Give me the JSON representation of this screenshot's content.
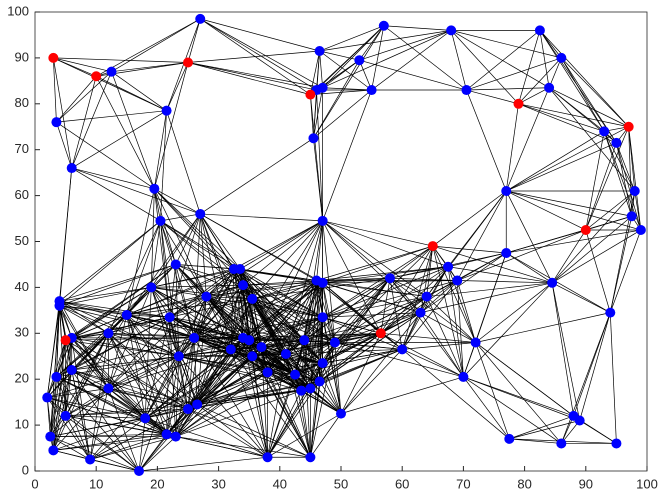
{
  "chart_data": {
    "type": "scatter",
    "xlim": [
      0,
      100
    ],
    "ylim": [
      0,
      100
    ],
    "xticks": [
      0,
      10,
      20,
      30,
      40,
      50,
      60,
      70,
      80,
      90,
      100
    ],
    "yticks": [
      0,
      10,
      20,
      30,
      40,
      50,
      60,
      70,
      80,
      90,
      100
    ],
    "series": [
      {
        "color": "#0000ff",
        "x": [
          27,
          46.5,
          53,
          57,
          68,
          82.5,
          86,
          47,
          46,
          55,
          70.5,
          84,
          12.5,
          21.5,
          3.5,
          6,
          45.5,
          93,
          95,
          98,
          97.5,
          99,
          77,
          19.5,
          20.5,
          27,
          47,
          77,
          84.5,
          94,
          67.5,
          69,
          64,
          63,
          60,
          72,
          70,
          58,
          47,
          46,
          47,
          49,
          47,
          44,
          46.5,
          45,
          43.5,
          42.5,
          41,
          37,
          38,
          35.5,
          34,
          35,
          32,
          35.5,
          34,
          33.5,
          32.5,
          28,
          26,
          23,
          22,
          23.5,
          25,
          26.5,
          19,
          15,
          12,
          12,
          18,
          21.5,
          23,
          38,
          45,
          50,
          17,
          9,
          2.5,
          3,
          2,
          3.5,
          6,
          5,
          6,
          4,
          4,
          77.5,
          86,
          88,
          89,
          95
        ],
        "y": [
          98.5,
          91.5,
          89.5,
          97,
          96,
          96,
          90,
          83.5,
          83,
          83,
          83,
          83.5,
          87,
          78.5,
          76,
          66,
          72.5,
          74,
          71.5,
          61,
          55.5,
          52.5,
          61,
          61.5,
          54.5,
          56,
          54.5,
          47.5,
          41,
          34.5,
          44.5,
          41.5,
          38,
          34.5,
          26.5,
          28,
          20.5,
          42,
          41,
          41.5,
          33.5,
          28,
          23.5,
          28.5,
          19.5,
          18,
          17.5,
          21,
          25.5,
          27,
          21.5,
          25,
          29,
          28.5,
          26.5,
          37.5,
          40.5,
          44,
          44,
          38,
          29,
          45,
          33.5,
          25,
          13.5,
          14.5,
          40,
          34,
          30,
          18,
          11.5,
          8,
          7.5,
          3,
          3,
          12.5,
          0,
          2.5,
          7.5,
          4.5,
          16,
          20.5,
          22,
          12,
          29,
          36,
          37,
          7,
          6,
          12,
          11,
          6
        ]
      },
      {
        "color": "#ff0000",
        "x": [
          3,
          10,
          25,
          45,
          79,
          97,
          90,
          65,
          56.5,
          5
        ],
        "y": [
          90,
          86,
          89,
          82,
          80,
          75,
          52.5,
          49,
          30,
          28.5
        ]
      }
    ]
  }
}
